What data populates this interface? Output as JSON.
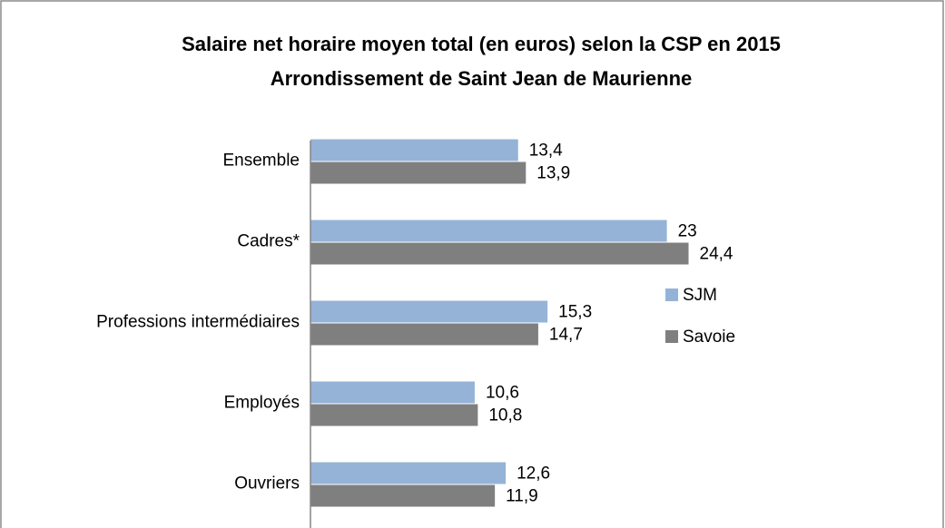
{
  "chart_data": {
    "type": "bar",
    "orientation": "horizontal",
    "title": "Salaire net horaire moyen total (en euros) selon la CSP en 2015",
    "subtitle": "Arrondissement de Saint Jean de Maurienne",
    "categories": [
      "Ensemble",
      "Cadres*",
      "Professions intermédiaires",
      "Employés",
      "Ouvriers"
    ],
    "series": [
      {
        "name": "SJM",
        "color": "#95b3d7",
        "values": [
          13.4,
          23,
          15.3,
          10.6,
          12.6
        ],
        "value_labels": [
          "13,4",
          "23",
          "15,3",
          "10,6",
          "12,6"
        ]
      },
      {
        "name": "Savoie",
        "color": "#7f7f7f",
        "values": [
          13.9,
          24.4,
          14.7,
          10.8,
          11.9
        ],
        "value_labels": [
          "13,9",
          "24,4",
          "14,7",
          "10,8",
          "11,9"
        ]
      }
    ],
    "legend": "right"
  }
}
